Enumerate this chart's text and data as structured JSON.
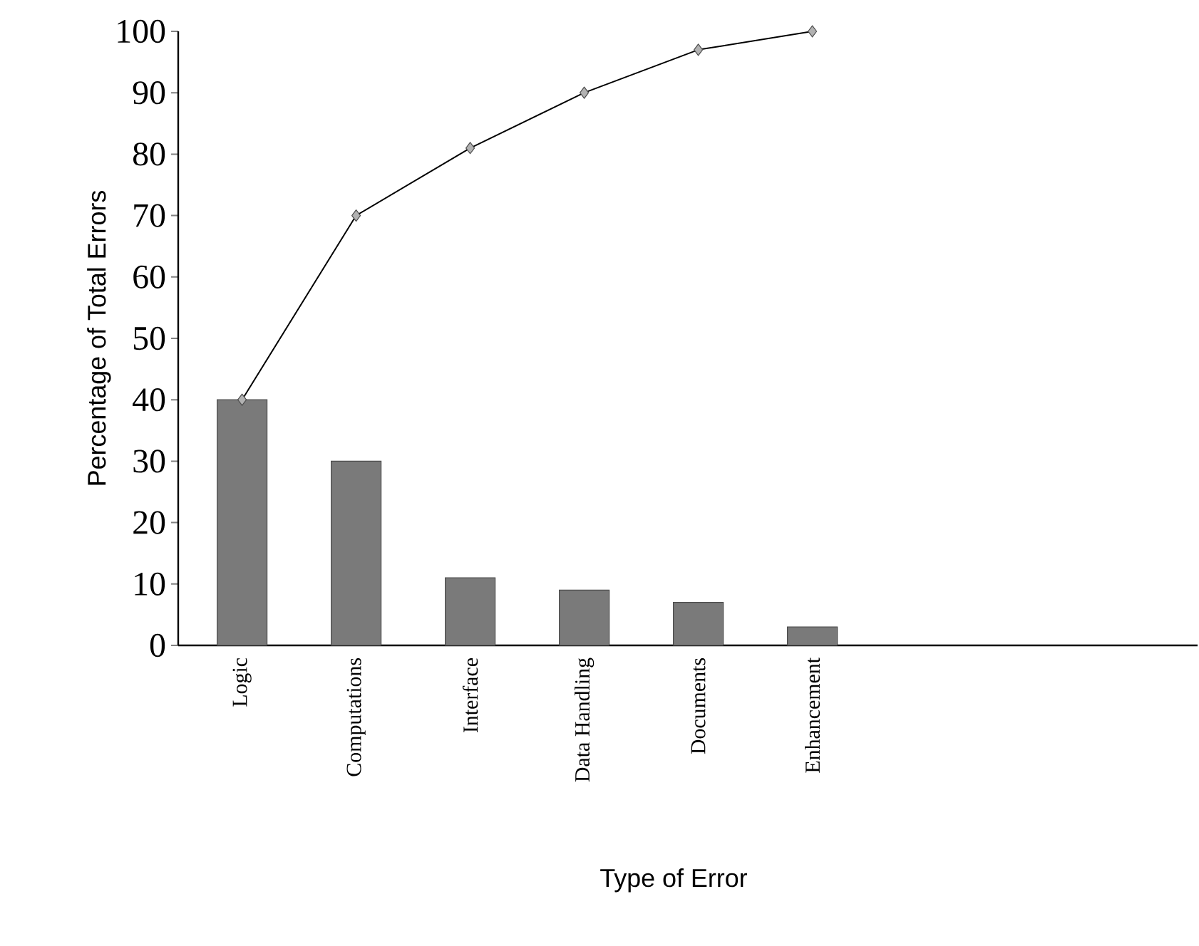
{
  "chart_data": {
    "type": "bar",
    "xlabel": "Type of Error",
    "ylabel": "Percentage of Total Errors",
    "categories": [
      "Logic",
      "Computations",
      "Interface",
      "Data Handling",
      "Documents",
      "Enhancement"
    ],
    "ylim": [
      0,
      100
    ],
    "yticks": [
      0,
      10,
      20,
      30,
      40,
      50,
      60,
      70,
      80,
      90,
      100
    ],
    "marker": "diamond",
    "series": [
      {
        "color": "#7a7a7a",
        "values": [
          40,
          30,
          11,
          9,
          7,
          3
        ]
      },
      {
        "type": "line",
        "color": "#000000",
        "values": [
          40,
          70,
          81,
          90,
          97,
          100
        ]
      }
    ]
  }
}
